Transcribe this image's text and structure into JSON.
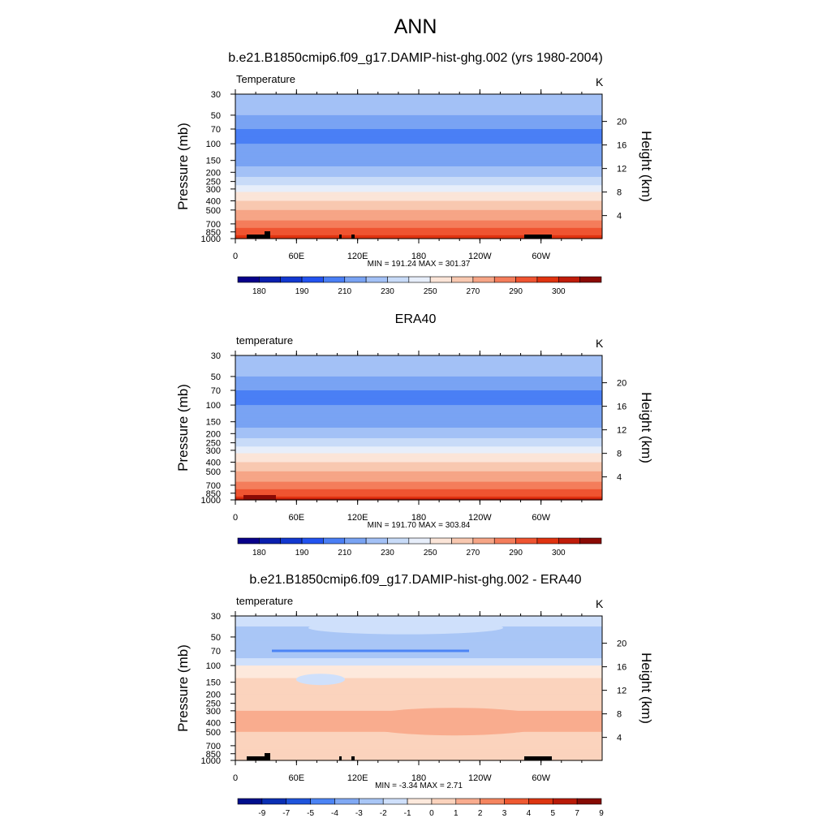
{
  "figure": {
    "title": "ANN"
  },
  "chart_data": [
    {
      "type": "heatmap",
      "title": "b.e21.B1850cmip6.f09_g17.DAMIP-hist-ghg.002 (yrs 1980-2004)",
      "variable_label": "Temperature",
      "units": "K",
      "ylabel": "Pressure (mb)",
      "ylabel_right": "Height (km)",
      "x_ticks": [
        "0",
        "60E",
        "120E",
        "180",
        "120W",
        "60W"
      ],
      "y_ticks": [
        "30",
        "50",
        "70",
        "100",
        "150",
        "200",
        "250",
        "300",
        "400",
        "500",
        "700",
        "850",
        "1000"
      ],
      "height_ticks": [
        "20",
        "16",
        "12",
        "8",
        "4"
      ],
      "min": 191.24,
      "max": 301.37,
      "minmax_text": "MIN = 191.24  MAX = 301.37",
      "colorbar_labels": [
        "180",
        "190",
        "210",
        "230",
        "250",
        "270",
        "290",
        "300"
      ],
      "levels_by_pressure": [
        {
          "p": 30,
          "t": 215
        },
        {
          "p": 50,
          "t": 210
        },
        {
          "p": 70,
          "t": 200
        },
        {
          "p": 100,
          "t": 200
        },
        {
          "p": 150,
          "t": 205
        },
        {
          "p": 200,
          "t": 215
        },
        {
          "p": 250,
          "t": 225
        },
        {
          "p": 300,
          "t": 235
        },
        {
          "p": 400,
          "t": 250
        },
        {
          "p": 500,
          "t": 260
        },
        {
          "p": 700,
          "t": 275
        },
        {
          "p": 850,
          "t": 285
        },
        {
          "p": 1000,
          "t": 295
        }
      ]
    },
    {
      "type": "heatmap",
      "title": "ERA40",
      "variable_label": "temperature",
      "units": "K",
      "ylabel": "Pressure (mb)",
      "ylabel_right": "Height (km)",
      "x_ticks": [
        "0",
        "60E",
        "120E",
        "180",
        "120W",
        "60W"
      ],
      "y_ticks": [
        "30",
        "50",
        "70",
        "100",
        "150",
        "200",
        "250",
        "300",
        "400",
        "500",
        "700",
        "850",
        "1000"
      ],
      "height_ticks": [
        "20",
        "16",
        "12",
        "8",
        "4"
      ],
      "min": 191.7,
      "max": 303.84,
      "minmax_text": "MIN = 191.70  MAX = 303.84",
      "colorbar_labels": [
        "180",
        "190",
        "210",
        "230",
        "250",
        "270",
        "290",
        "300"
      ],
      "levels_by_pressure": [
        {
          "p": 30,
          "t": 215
        },
        {
          "p": 50,
          "t": 210
        },
        {
          "p": 70,
          "t": 200
        },
        {
          "p": 100,
          "t": 200
        },
        {
          "p": 150,
          "t": 205
        },
        {
          "p": 200,
          "t": 215
        },
        {
          "p": 250,
          "t": 225
        },
        {
          "p": 300,
          "t": 235
        },
        {
          "p": 400,
          "t": 250
        },
        {
          "p": 500,
          "t": 260
        },
        {
          "p": 700,
          "t": 275
        },
        {
          "p": 850,
          "t": 285
        },
        {
          "p": 1000,
          "t": 297
        }
      ]
    },
    {
      "type": "heatmap",
      "title": "b.e21.B1850cmip6.f09_g17.DAMIP-hist-ghg.002 - ERA40",
      "variable_label": "temperature",
      "units": "K",
      "ylabel": "Pressure (mb)",
      "ylabel_right": "Height (km)",
      "x_ticks": [
        "0",
        "60E",
        "120E",
        "180",
        "120W",
        "60W"
      ],
      "y_ticks": [
        "30",
        "50",
        "70",
        "100",
        "150",
        "200",
        "250",
        "300",
        "400",
        "500",
        "700",
        "850",
        "1000"
      ],
      "height_ticks": [
        "20",
        "16",
        "12",
        "8",
        "4"
      ],
      "min": -3.34,
      "max": 2.71,
      "minmax_text": "MIN = -3.34  MAX =  2.71",
      "colorbar_labels": [
        "-9",
        "-7",
        "-5",
        "-4",
        "-3",
        "-2",
        "-1",
        "0",
        "1",
        "2",
        "3",
        "4",
        "5",
        "7",
        "9"
      ],
      "levels_by_pressure": [
        {
          "p": 30,
          "t": -1.5
        },
        {
          "p": 50,
          "t": -2.5
        },
        {
          "p": 70,
          "t": -3
        },
        {
          "p": 100,
          "t": -1
        },
        {
          "p": 150,
          "t": 0.5
        },
        {
          "p": 200,
          "t": 0.5
        },
        {
          "p": 300,
          "t": 1
        },
        {
          "p": 400,
          "t": 1.5
        },
        {
          "p": 500,
          "t": 1
        },
        {
          "p": 700,
          "t": 0.5
        },
        {
          "p": 850,
          "t": 0.5
        },
        {
          "p": 1000,
          "t": 0.5
        }
      ]
    }
  ],
  "palettes": {
    "temperature": [
      "#08008a",
      "#0a1fae",
      "#1238d0",
      "#2253f0",
      "#4a7ff5",
      "#79a3f3",
      "#a3c1f6",
      "#c8dbf8",
      "#e7eefa",
      "#fbe5d8",
      "#f8c8b0",
      "#f6a586",
      "#f47d5b",
      "#ef5431",
      "#e03310",
      "#c01c0a",
      "#8b0a05"
    ],
    "difference": [
      "#000f8c",
      "#0a2fb4",
      "#1e54dc",
      "#4c84f5",
      "#80a9f4",
      "#a9c6f6",
      "#cfe0fb",
      "#fde9dc",
      "#fbd3bd",
      "#f9ac8e",
      "#f5855f",
      "#ef5931",
      "#dd3510",
      "#b91a07",
      "#860b04"
    ]
  }
}
